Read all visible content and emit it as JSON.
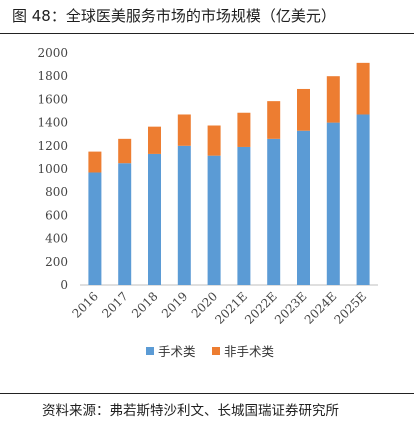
{
  "header": {
    "title": "图 48：全球医美服务市场的市场规模（亿美元）"
  },
  "footer": {
    "source": "资料来源：弗若斯特沙利文、长城国瑞证券研究所"
  },
  "colors": {
    "surgical": "#5b9bd5",
    "non_surgical": "#ed7d31",
    "axis": "#bfbfbf"
  },
  "chart_data": {
    "type": "bar",
    "stacked": true,
    "categories": [
      "2016",
      "2017",
      "2018",
      "2019",
      "2020",
      "2021E",
      "2022E",
      "2023E",
      "2024E",
      "2025E"
    ],
    "series": [
      {
        "name": "手术类",
        "values": [
          970,
          1050,
          1130,
          1200,
          1115,
          1190,
          1260,
          1330,
          1400,
          1470
        ]
      },
      {
        "name": "非手术类",
        "values": [
          180,
          210,
          235,
          270,
          260,
          295,
          325,
          360,
          400,
          445
        ]
      }
    ],
    "ylim": [
      0,
      2000
    ],
    "yticks": [
      "0",
      "200",
      "400",
      "600",
      "800",
      "1000",
      "1200",
      "1400",
      "1600",
      "1800",
      "2000"
    ],
    "grid": false,
    "legend_position": "bottom"
  }
}
